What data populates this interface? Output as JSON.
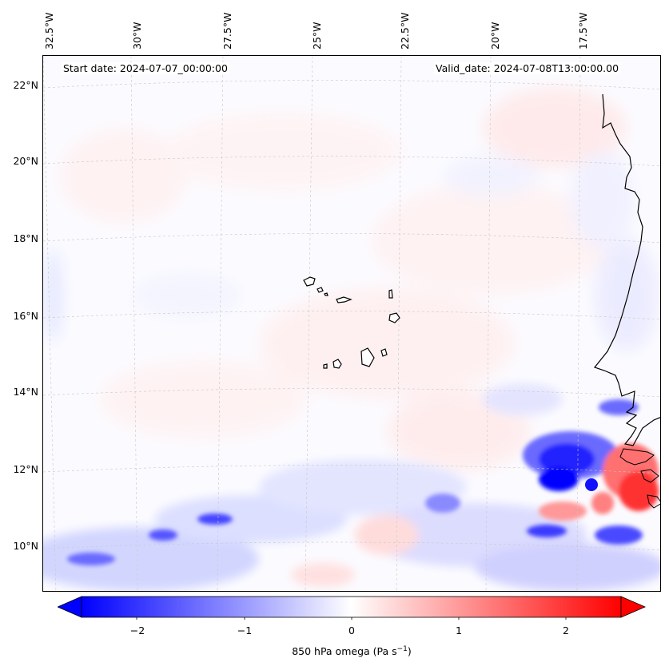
{
  "map": {
    "start_date": "Start date: 2024-07-07_00:00:00",
    "valid_date": "Valid_date: 2024-07-08T13:00:00.00",
    "longitude_labels": [
      "32.5°W",
      "30°W",
      "27.5°W",
      "25°W",
      "22.5°W",
      "20°W",
      "17.5°W"
    ],
    "latitude_labels": [
      "22°N",
      "20°N",
      "18°N",
      "16°N",
      "14°N",
      "12°N",
      "10°N"
    ],
    "field": "850 hPa omega",
    "features": [
      "Cape Verde islands",
      "West African coastline"
    ]
  },
  "colorbar": {
    "ticks": [
      "−2",
      "−1",
      "0",
      "1",
      "2"
    ],
    "label_prefix": "850 hPa omega (Pa s",
    "label_exponent": "−1",
    "label_suffix": ")",
    "min_color": "#0000ff",
    "mid_color": "#ffffff",
    "max_color": "#ff0000",
    "extend": "both"
  }
}
